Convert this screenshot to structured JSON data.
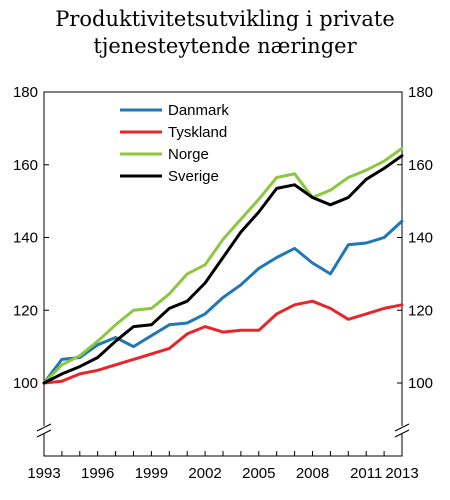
{
  "chart_data": {
    "type": "line",
    "title_lines": [
      "Produktivitetsutvikling i private",
      "tjenesteytende næringer"
    ],
    "xlabel": "",
    "ylabel": "",
    "x": [
      1993,
      1994,
      1995,
      1996,
      1997,
      1998,
      1999,
      2000,
      2001,
      2002,
      2003,
      2004,
      2005,
      2006,
      2007,
      2008,
      2009,
      2010,
      2011,
      2012,
      2013
    ],
    "x_ticks": [
      "1993",
      "1996",
      "1999",
      "2002",
      "2005",
      "2008",
      "2011",
      "2013"
    ],
    "y_ticks": [
      "100",
      "120",
      "140",
      "160",
      "180"
    ],
    "ylim": [
      100,
      180
    ],
    "xlim": [
      1993,
      2013
    ],
    "axis_break": true,
    "legend_position": "top-left",
    "grid": false,
    "series": [
      {
        "name": "Danmark",
        "color": "#1f77b4",
        "values": [
          100,
          106.5,
          107.0,
          110.5,
          112.5,
          110.0,
          113.0,
          116.0,
          116.5,
          119.0,
          123.5,
          127.0,
          131.5,
          134.5,
          137.0,
          133.0,
          130.0,
          138.0,
          138.5,
          140.0,
          144.5
        ]
      },
      {
        "name": "Tyskland",
        "color": "#e8262a",
        "values": [
          100,
          100.5,
          102.5,
          103.5,
          105.0,
          106.5,
          108.0,
          109.5,
          113.5,
          115.5,
          114.0,
          114.5,
          114.5,
          119.0,
          121.5,
          122.5,
          120.5,
          117.5,
          119.0,
          120.5,
          121.5
        ]
      },
      {
        "name": "Norge",
        "color": "#8dc63f",
        "values": [
          100,
          105.0,
          107.5,
          111.5,
          116.0,
          120.0,
          120.5,
          124.5,
          130.0,
          132.5,
          139.5,
          145.0,
          150.5,
          156.5,
          157.5,
          151.0,
          153.0,
          156.5,
          158.5,
          161.0,
          164.5
        ]
      },
      {
        "name": "Sverige",
        "color": "#000000",
        "values": [
          100,
          102.5,
          104.5,
          107.0,
          111.5,
          115.5,
          116.0,
          120.5,
          122.5,
          127.5,
          134.5,
          141.5,
          147.0,
          153.5,
          154.5,
          151.0,
          149.0,
          151.0,
          156.0,
          159.0,
          162.5
        ]
      }
    ]
  }
}
